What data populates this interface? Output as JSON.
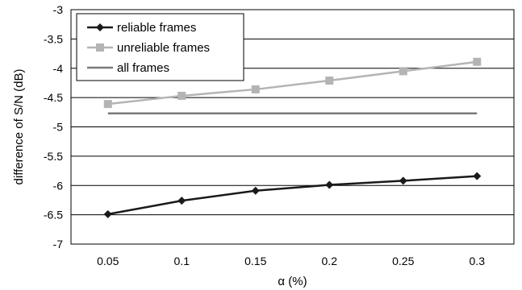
{
  "chart_data": {
    "type": "line",
    "title": "",
    "xlabel": "α (%)",
    "ylabel": "difference of S/N (dB)",
    "x": [
      0.05,
      0.1,
      0.15,
      0.2,
      0.25,
      0.3
    ],
    "x_tick_labels": [
      "0.05",
      "0.1",
      "0.15",
      "0.2",
      "0.25",
      "0.3"
    ],
    "ylim": [
      -7,
      -3
    ],
    "y_ticks": [
      -3,
      -3.5,
      -4,
      -4.5,
      -5,
      -5.5,
      -6,
      -6.5,
      -7
    ],
    "y_tick_labels": [
      "-3",
      "-3.5",
      "-4",
      "-4.5",
      "-5",
      "-5.5",
      "-6",
      "-6.5",
      "-7"
    ],
    "grid": true,
    "legend_position": "top-left",
    "series": [
      {
        "name": "reliable frames",
        "values": [
          -6.49,
          -6.26,
          -6.09,
          -5.99,
          -5.92,
          -5.84
        ],
        "color": "#1a1a1a",
        "marker": "diamond"
      },
      {
        "name": "unreliable frames",
        "values": [
          -4.61,
          -4.47,
          -4.36,
          -4.21,
          -4.05,
          -3.89
        ],
        "color": "#b4b4b4",
        "marker": "square"
      },
      {
        "name": "all frames",
        "values": [
          -4.77,
          -4.77,
          -4.77,
          -4.77,
          -4.77,
          -4.77
        ],
        "color": "#7a7a7a",
        "marker": "none"
      }
    ]
  }
}
